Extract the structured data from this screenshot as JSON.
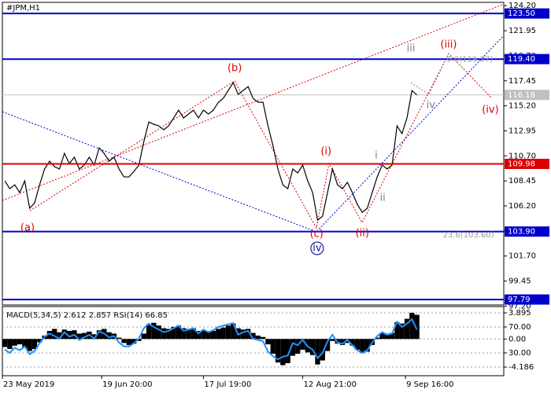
{
  "chart_data": [
    {
      "type": "line",
      "title": "#JPM,H1",
      "xlim": [
        0,
        101
      ],
      "ylim": [
        97.3,
        124.5
      ],
      "grid": false,
      "yticks": [
        {
          "value": 124.2,
          "label": "124.20"
        },
        121.95,
        {
          "value": 119.7,
          "label": "119.70"
        },
        117.45,
        {
          "value": 115.2,
          "label": "115.20"
        },
        112.95,
        {
          "value": 110.7,
          "label": "110.70"
        },
        108.45,
        {
          "value": 106.2,
          "label": "106.20"
        },
        103.95,
        {
          "value": 101.7,
          "label": "101.70"
        },
        99.45,
        {
          "value": 97.2,
          "label": "97.20"
        }
      ],
      "series": [
        {
          "color": "#000000",
          "values": [
            108.46,
            107.75,
            108.1,
            107.4,
            108.46,
            105.99,
            106.48,
            108.1,
            109.52,
            110.22,
            109.73,
            109.52,
            110.93,
            110.01,
            110.58,
            109.52,
            109.87,
            110.58,
            109.87,
            111.42,
            110.93,
            110.22,
            110.58,
            109.52,
            108.81,
            108.81,
            109.31,
            109.87,
            111.99,
            113.75,
            113.54,
            113.4,
            113.05,
            113.4,
            114.11,
            114.81,
            114.11,
            114.46,
            114.81,
            114.11,
            114.81,
            114.46,
            114.81,
            115.52,
            115.87,
            116.58,
            117.29,
            116.23,
            116.58,
            116.93,
            115.87,
            115.52,
            115.52,
            113.4,
            111.64,
            109.52,
            108.1,
            107.75,
            109.52,
            109.17,
            109.87,
            108.46,
            107.4,
            104.93,
            105.28,
            107.4,
            109.52,
            108.1,
            107.75,
            108.32,
            107.4,
            106.34,
            105.63,
            105.99,
            107.4,
            108.81,
            109.87,
            109.52,
            109.87,
            113.4,
            112.7,
            114.11,
            116.58,
            116.18
          ]
        }
      ],
      "last_price": 116.18,
      "last_price_color": "#c0c0c0",
      "levels": [
        {
          "value": 123.5,
          "label": "123.50",
          "color": "#0000cc"
        },
        {
          "value": 119.4,
          "label": "119.40",
          "color": "#0000cc"
        },
        {
          "value": 109.98,
          "label": "109.98",
          "color": "#dd0000"
        },
        {
          "value": 103.9,
          "label": "103.90",
          "color": "#0000cc"
        },
        {
          "value": 97.79,
          "label": "97.79",
          "color": "#0000cc"
        }
      ],
      "lines": [
        {
          "color": "#dd0000",
          "points": [
            [
              0,
              106.69
            ],
            [
              101,
              124.35
            ]
          ]
        },
        {
          "color": "#dd0000",
          "points": [
            [
              5.55,
              105.77
            ],
            [
              46.77,
              117.43
            ],
            [
              63.26,
              104.22
            ],
            [
              65.8,
              110.01
            ],
            [
              72.46,
              104.71
            ],
            [
              89.9,
              119.9
            ],
            [
              98.62,
              115.87
            ]
          ]
        },
        {
          "color": "#808080",
          "points": [
            [
              82.3,
              117.29
            ],
            [
              85.94,
              116.23
            ],
            [
              89.9,
              119.9
            ]
          ]
        },
        {
          "color": "#0000cc",
          "points": [
            [
              0,
              114.67
            ],
            [
              63.26,
              103.87
            ],
            [
              101,
              121.52
            ]
          ]
        }
      ],
      "annotations": [
        {
          "text": "(a)",
          "x": 5.07,
          "y": 104.22,
          "color": "#dd0000"
        },
        {
          "text": "(b)",
          "x": 46.8,
          "y": 118.56,
          "color": "#dd0000"
        },
        {
          "text": "(c)",
          "x": 63.3,
          "y": 103.66,
          "color": "#dd0000"
        },
        {
          "text": "iv",
          "x": 63.4,
          "y": 102.39,
          "color": "#1a1aa0",
          "circled": true
        },
        {
          "text": "(i)",
          "x": 65.2,
          "y": 111.07,
          "color": "#dd0000"
        },
        {
          "text": "(ii)",
          "x": 72.5,
          "y": 103.73,
          "color": "#dd0000"
        },
        {
          "text": "(iii)",
          "x": 89.9,
          "y": 120.68,
          "color": "#dd0000"
        },
        {
          "text": "(iv)",
          "x": 98.3,
          "y": 114.81,
          "color": "#dd0000"
        },
        {
          "text": "iii",
          "x": 82.3,
          "y": 120.32,
          "color": "#808080"
        },
        {
          "text": "iv",
          "x": 86.3,
          "y": 115.24,
          "color": "#808080"
        },
        {
          "text": "i",
          "x": 75.3,
          "y": 110.72,
          "color": "#808080"
        },
        {
          "text": "ii",
          "x": 76.6,
          "y": 106.9,
          "color": "#808080"
        },
        {
          "text": "0.0(119.37)",
          "x": 89.5,
          "y": 119.37,
          "color": "#999999",
          "small": true
        },
        {
          "text": "23.6(103.60)",
          "x": 88.7,
          "y": 103.6,
          "color": "#999999",
          "small": true
        }
      ]
    },
    {
      "type": "bar",
      "title": "MACD(5,34,5) 2.612 2.857 RSI(14) 66.85",
      "xlim": [
        0,
        101
      ],
      "ylim": [
        -5.47,
        4.83
      ],
      "y2lim": [
        -5.2,
        101.5
      ],
      "grid": true,
      "yticks": [
        3.895,
        {
          "value": 0,
          "label": "0.00"
        },
        -4.186
      ],
      "y2ticks": [
        {
          "value": 70,
          "label": "70.00"
        },
        {
          "value": 30,
          "label": "30.00"
        }
      ],
      "xticks": [
        {
          "value": 0,
          "label": "23 May 2019"
        },
        {
          "value": 20,
          "label": "19 Jun 20:00"
        },
        {
          "value": 40.5,
          "label": "17 Jul 19:00"
        },
        {
          "value": 60.5,
          "label": "12 Aug 21:00"
        },
        {
          "value": 81.2,
          "label": "9 Sep 16:00"
        }
      ],
      "series": [
        {
          "color": "#000000",
          "values": [
            -1.2,
            -1.5,
            -1.0,
            -0.8,
            -1.3,
            -1.8,
            -1.5,
            -0.5,
            0.5,
            1.2,
            1.5,
            1.0,
            1.4,
            1.2,
            1.3,
            0.8,
            0.9,
            1.1,
            0.7,
            1.3,
            1.5,
            1.0,
            0.8,
            0.2,
            -0.6,
            -0.9,
            -0.7,
            -0.3,
            0.8,
            2.2,
            2.4,
            2.0,
            1.6,
            1.5,
            1.8,
            2.0,
            1.6,
            1.5,
            1.6,
            1.2,
            1.3,
            1.1,
            1.2,
            1.5,
            1.7,
            2.0,
            2.3,
            1.6,
            1.4,
            1.5,
            0.9,
            0.5,
            0.3,
            -0.8,
            -2.2,
            -3.5,
            -3.9,
            -3.6,
            -2.5,
            -2.2,
            -1.6,
            -2.0,
            -2.4,
            -3.8,
            -3.2,
            -1.8,
            -0.3,
            -0.7,
            -0.9,
            -0.6,
            -1.0,
            -1.6,
            -2.1,
            -1.9,
            -0.9,
            0.2,
            0.9,
            0.8,
            0.9,
            2.5,
            2.3,
            3.0,
            3.9,
            3.6
          ]
        },
        {
          "type": "line",
          "axis": "y2",
          "color": "#1e90ff",
          "values": [
            35,
            30,
            38,
            34,
            40,
            28,
            33,
            45,
            55,
            60,
            56,
            52,
            62,
            55,
            58,
            50,
            54,
            58,
            52,
            63,
            60,
            54,
            56,
            46,
            40,
            40,
            45,
            52,
            68,
            75,
            70,
            66,
            62,
            64,
            68,
            72,
            64,
            66,
            68,
            60,
            66,
            62,
            65,
            70,
            72,
            74,
            76,
            58,
            62,
            64,
            52,
            50,
            48,
            32,
            25,
            20,
            24,
            26,
            45,
            42,
            50,
            40,
            35,
            22,
            30,
            48,
            58,
            46,
            44,
            50,
            42,
            34,
            30,
            34,
            46,
            56,
            62,
            58,
            60,
            78,
            70,
            75,
            82,
            66
          ]
        }
      ]
    }
  ]
}
